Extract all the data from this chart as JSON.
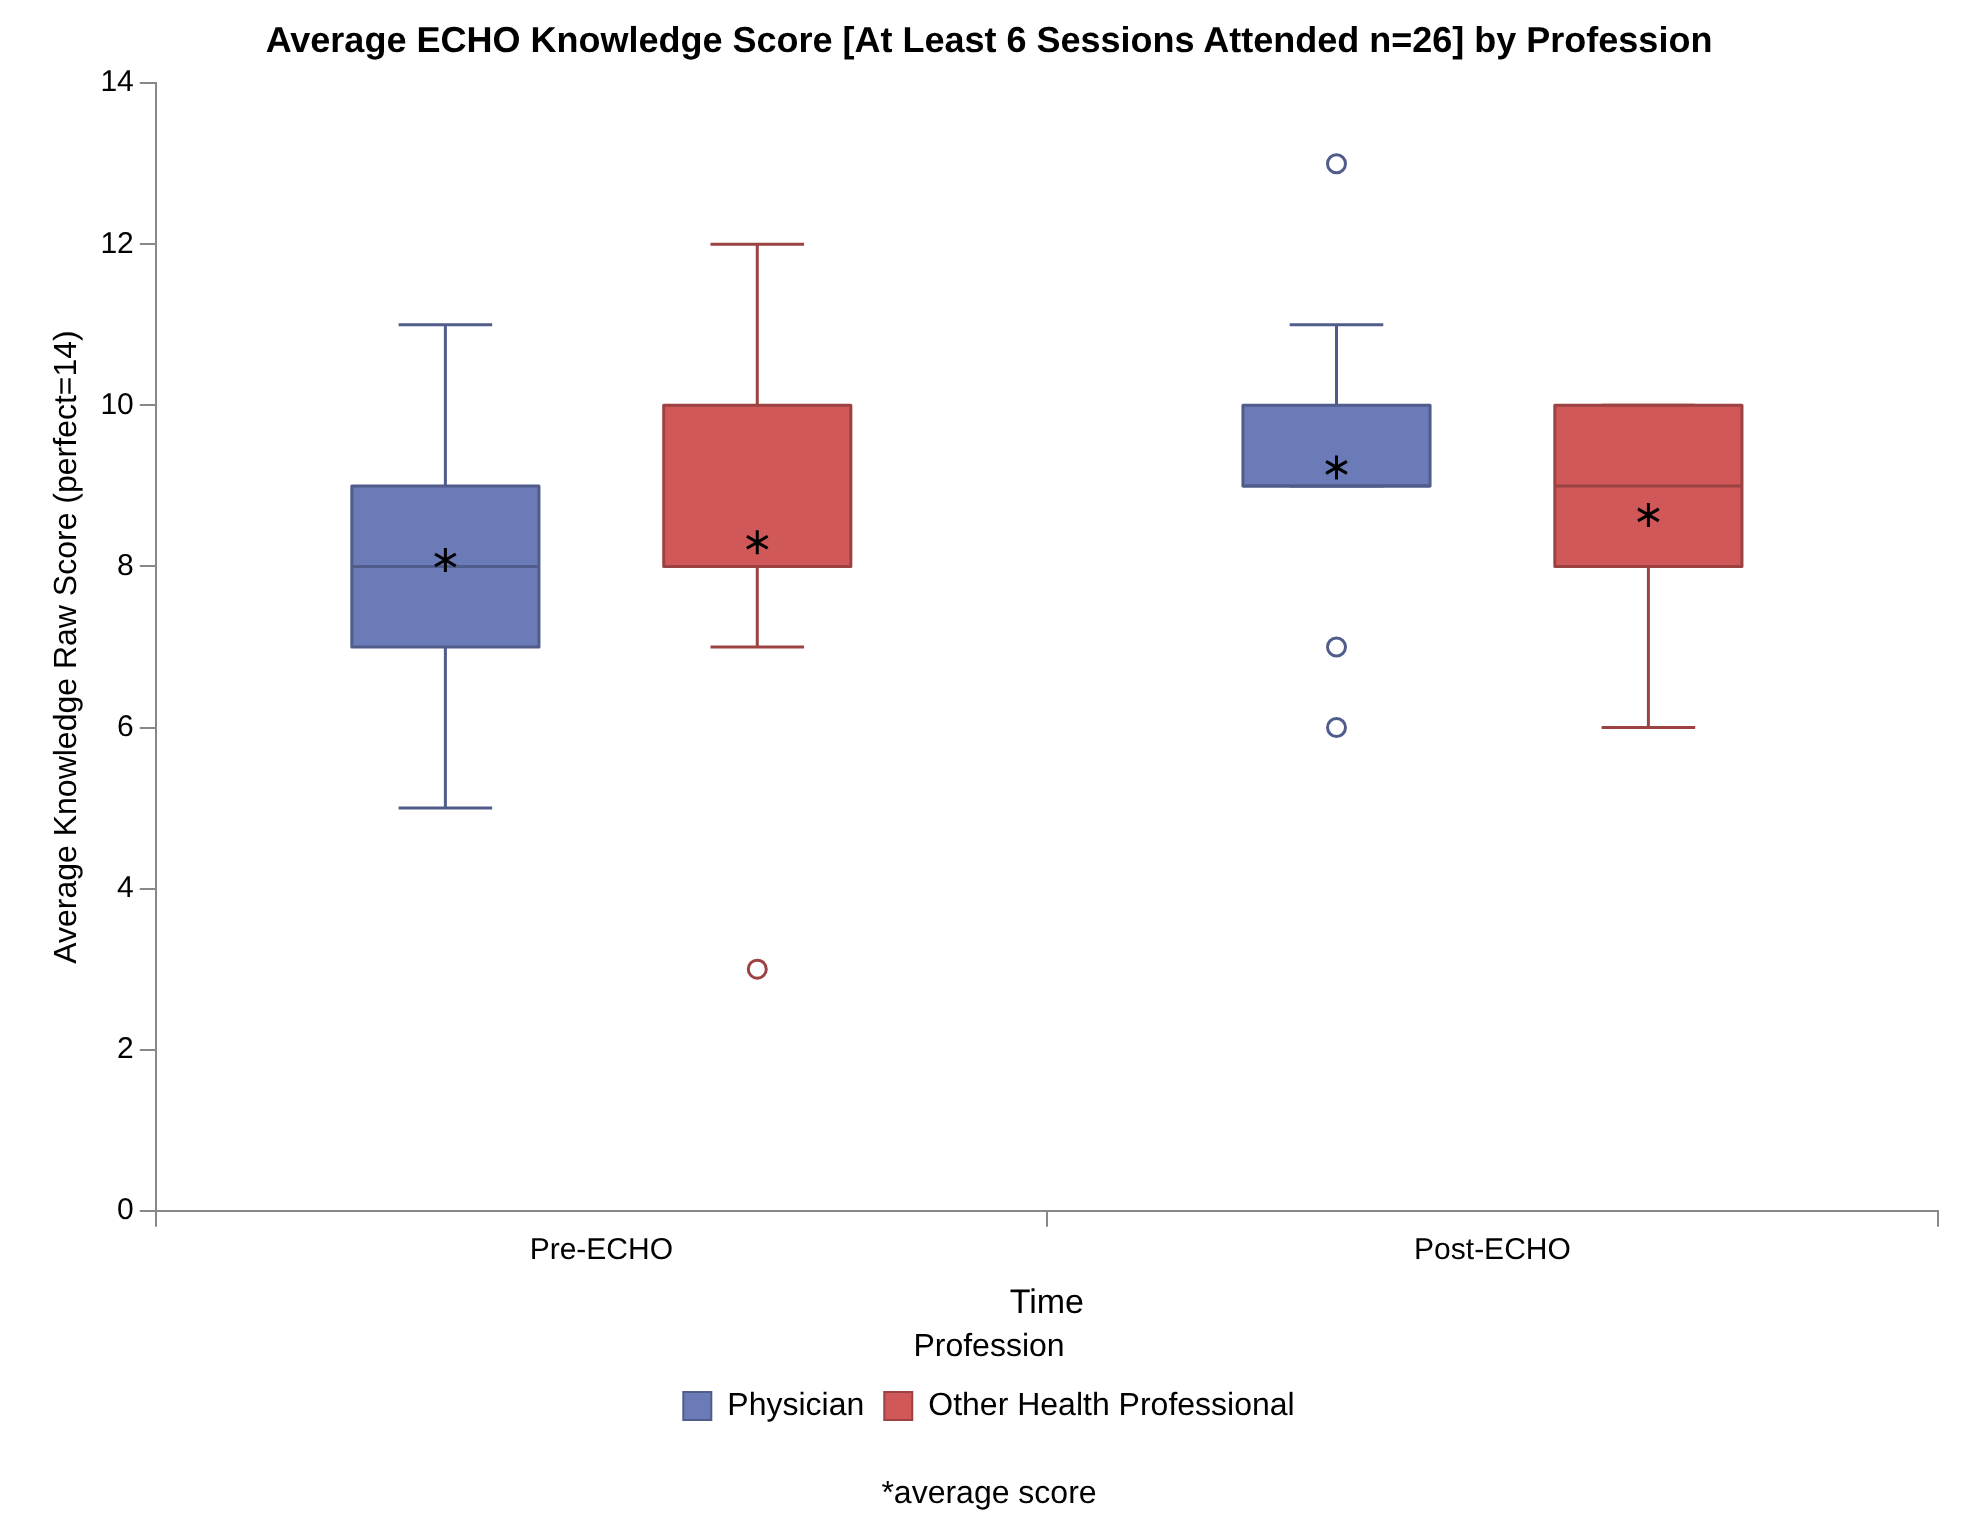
{
  "chart_data": {
    "type": "box",
    "title": "Average ECHO Knowledge Score [At Least 6 Sessions Attended n=26] by Profession",
    "xlabel": "Time",
    "ylabel": "Average Knowledge Raw Score (perfect=14)",
    "legend_title": "Profession",
    "legend": "bottom",
    "categories": [
      "Pre-ECHO",
      "Post-ECHO"
    ],
    "ylim": [
      0,
      14
    ],
    "yticks": [
      0,
      2,
      4,
      6,
      8,
      10,
      12,
      14
    ],
    "grid": false,
    "annotations": [
      "*average score"
    ],
    "series": [
      {
        "name": "Physician",
        "color": "#6a7bb8",
        "boxes": [
          {
            "low": 5,
            "q1": 7,
            "median": 8,
            "q3": 9,
            "high": 11,
            "mean": 8.08
          },
          {
            "low": 9,
            "q1": 9,
            "median": 9,
            "q3": 10,
            "high": 11,
            "mean": 9.23,
            "outliers": [
              13,
              7,
              6
            ]
          }
        ]
      },
      {
        "name": "Other Health Professional",
        "color": "#d05858",
        "boxes": [
          {
            "low": 7,
            "q1": 8,
            "median": 8,
            "q3": 10,
            "high": 12,
            "mean": 8.3,
            "outliers": [
              3
            ]
          },
          {
            "low": 6,
            "q1": 8,
            "median": 9,
            "q3": 10,
            "high": 10,
            "mean": 8.64
          }
        ]
      }
    ]
  }
}
